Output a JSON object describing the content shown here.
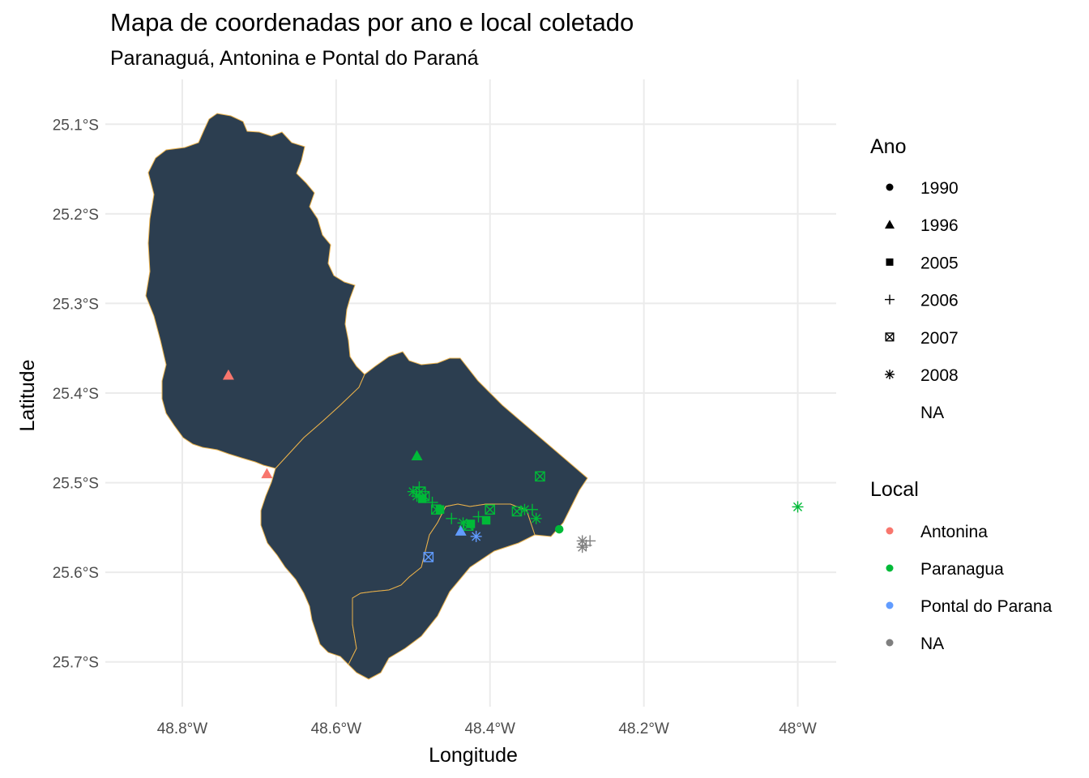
{
  "title": "Mapa de coordenadas por ano e local coletado",
  "subtitle": "Paranaguá, Antonina e Pontal do Paraná",
  "colors": {
    "region_fill": "#2c3e50",
    "border": "#e8b04a",
    "grid": "#ebebeb",
    "Antonina": "#f8766d",
    "Paranagua": "#00ba38",
    "Pontal do Parana": "#619cff",
    "NA": "#7f7f7f"
  },
  "chart_data": {
    "type": "scatter",
    "xlabel": "Longitude",
    "ylabel": "Latitude",
    "xlim": [
      -48.9,
      -47.95
    ],
    "ylim": [
      -25.75,
      -25.05
    ],
    "x_ticks": [
      {
        "value": -48.8,
        "label": "48.8°W"
      },
      {
        "value": -48.6,
        "label": "48.6°W"
      },
      {
        "value": -48.4,
        "label": "48.4°W"
      },
      {
        "value": -48.2,
        "label": "48.2°W"
      },
      {
        "value": -48.0,
        "label": "48°W"
      }
    ],
    "y_ticks": [
      {
        "value": -25.1,
        "label": "25.1°S"
      },
      {
        "value": -25.2,
        "label": "25.2°S"
      },
      {
        "value": -25.3,
        "label": "25.3°S"
      },
      {
        "value": -25.4,
        "label": "25.4°S"
      },
      {
        "value": -25.5,
        "label": "25.5°S"
      },
      {
        "value": -25.6,
        "label": "25.6°S"
      },
      {
        "value": -25.7,
        "label": "25.7°S"
      }
    ],
    "legend_ano": {
      "title": "Ano",
      "items": [
        {
          "label": "1990",
          "shape": "circle"
        },
        {
          "label": "1996",
          "shape": "triangle"
        },
        {
          "label": "2005",
          "shape": "square"
        },
        {
          "label": "2006",
          "shape": "plus"
        },
        {
          "label": "2007",
          "shape": "boxx"
        },
        {
          "label": "2008",
          "shape": "asterisk"
        },
        {
          "label": "NA",
          "shape": "none"
        }
      ]
    },
    "legend_local": {
      "title": "Local",
      "items": [
        {
          "label": "Antonina",
          "color_key": "Antonina"
        },
        {
          "label": "Paranagua",
          "color_key": "Paranagua"
        },
        {
          "label": "Pontal do Parana",
          "color_key": "Pontal do Parana"
        },
        {
          "label": "NA",
          "color_key": "NA"
        }
      ]
    },
    "points": [
      {
        "lon": -48.74,
        "lat": -25.38,
        "ano": "1996",
        "local": "Antonina"
      },
      {
        "lon": -48.69,
        "lat": -25.49,
        "ano": "1996",
        "local": "Antonina"
      },
      {
        "lon": -48.495,
        "lat": -25.47,
        "ano": "1996",
        "local": "Paranagua"
      },
      {
        "lon": -48.5,
        "lat": -25.51,
        "ano": "2008",
        "local": "Paranagua"
      },
      {
        "lon": -48.495,
        "lat": -25.515,
        "ano": "2008",
        "local": "Paranagua"
      },
      {
        "lon": -48.49,
        "lat": -25.51,
        "ano": "2007",
        "local": "Paranagua"
      },
      {
        "lon": -48.485,
        "lat": -25.515,
        "ano": "2007",
        "local": "Paranagua"
      },
      {
        "lon": -48.492,
        "lat": -25.505,
        "ano": "2006",
        "local": "Paranagua"
      },
      {
        "lon": -48.488,
        "lat": -25.518,
        "ano": "2005",
        "local": "Paranagua"
      },
      {
        "lon": -48.475,
        "lat": -25.522,
        "ano": "2006",
        "local": "Paranagua"
      },
      {
        "lon": -48.47,
        "lat": -25.53,
        "ano": "2007",
        "local": "Paranagua"
      },
      {
        "lon": -48.465,
        "lat": -25.53,
        "ano": "2005",
        "local": "Paranagua"
      },
      {
        "lon": -48.45,
        "lat": -25.54,
        "ano": "2006",
        "local": "Paranagua"
      },
      {
        "lon": -48.435,
        "lat": -25.545,
        "ano": "2008",
        "local": "Paranagua"
      },
      {
        "lon": -48.428,
        "lat": -25.548,
        "ano": "2007",
        "local": "Paranagua"
      },
      {
        "lon": -48.425,
        "lat": -25.546,
        "ano": "2005",
        "local": "Paranagua"
      },
      {
        "lon": -48.415,
        "lat": -25.538,
        "ano": "2006",
        "local": "Paranagua"
      },
      {
        "lon": -48.405,
        "lat": -25.542,
        "ano": "2005",
        "local": "Paranagua"
      },
      {
        "lon": -48.4,
        "lat": -25.53,
        "ano": "2007",
        "local": "Paranagua"
      },
      {
        "lon": -48.365,
        "lat": -25.532,
        "ano": "2007",
        "local": "Paranagua"
      },
      {
        "lon": -48.355,
        "lat": -25.53,
        "ano": "2008",
        "local": "Paranagua"
      },
      {
        "lon": -48.345,
        "lat": -25.53,
        "ano": "2006",
        "local": "Paranagua"
      },
      {
        "lon": -48.34,
        "lat": -25.54,
        "ano": "2008",
        "local": "Paranagua"
      },
      {
        "lon": -48.335,
        "lat": -25.493,
        "ano": "2007",
        "local": "Paranagua"
      },
      {
        "lon": -48.31,
        "lat": -25.552,
        "ano": "1990",
        "local": "Paranagua"
      },
      {
        "lon": -48.0,
        "lat": -25.527,
        "ano": "2008",
        "local": "Paranagua"
      },
      {
        "lon": -48.438,
        "lat": -25.554,
        "ano": "1996",
        "local": "Pontal do Parana"
      },
      {
        "lon": -48.418,
        "lat": -25.56,
        "ano": "2008",
        "local": "Pontal do Parana"
      },
      {
        "lon": -48.48,
        "lat": -25.583,
        "ano": "2007",
        "local": "Pontal do Parana"
      },
      {
        "lon": -48.28,
        "lat": -25.565,
        "ano": "2008",
        "local": "NA"
      },
      {
        "lon": -48.275,
        "lat": -25.57,
        "ano": "2006",
        "local": "NA"
      },
      {
        "lon": -48.27,
        "lat": -25.565,
        "ano": "2006",
        "local": "NA"
      },
      {
        "lon": -48.28,
        "lat": -25.572,
        "ano": "2008",
        "local": "NA"
      }
    ]
  }
}
